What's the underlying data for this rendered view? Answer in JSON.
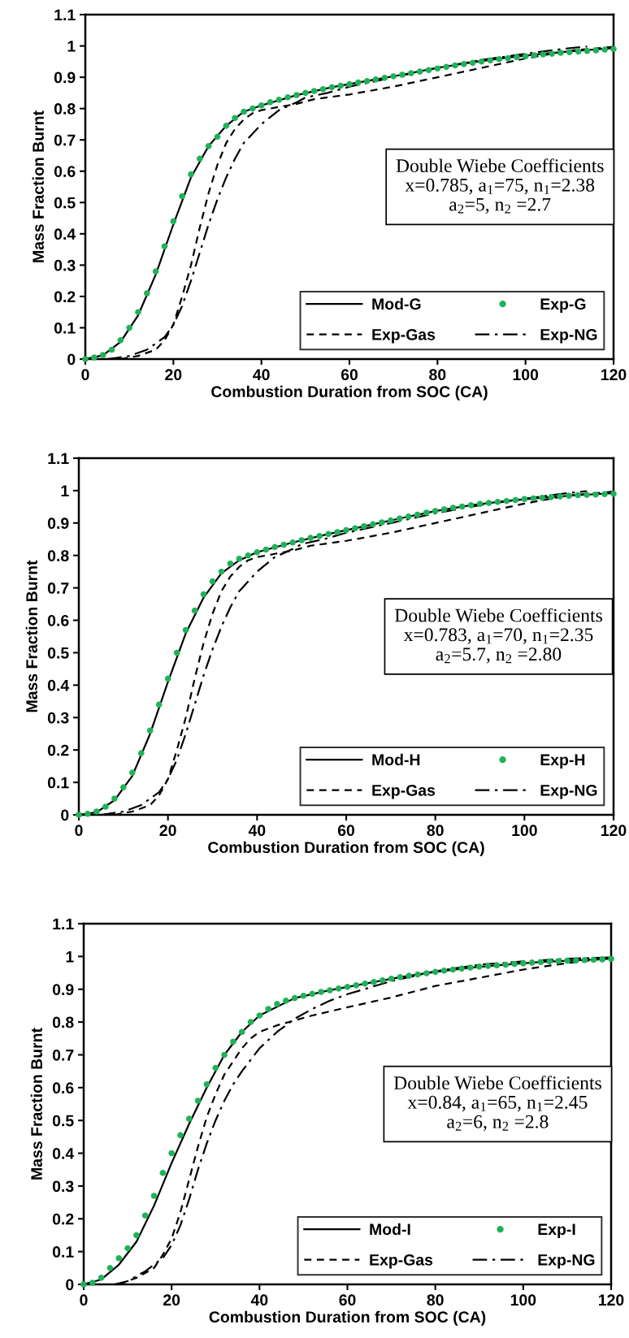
{
  "chart_data": [
    {
      "type": "line",
      "xlabel": "Combustion Duration from SOC (CA)",
      "ylabel": "Mass Fraction Burnt",
      "xlim": [
        0,
        120
      ],
      "ylim": [
        0,
        1.1
      ],
      "xticks": [
        0,
        20,
        40,
        60,
        80,
        100,
        120
      ],
      "yticks": [
        0,
        0.1,
        0.2,
        0.3,
        0.4,
        0.5,
        0.6,
        0.7,
        0.8,
        0.9,
        1,
        1.1
      ],
      "grid": false,
      "legend": "bottom right",
      "annotations": [
        "Double Wiebe Coefficients\nx=0.785, a$_{1}$=75, n$_{1}$=2.38\na$_{2}$=5, n$_{2}$ =2.7"
      ],
      "series": [
        {
          "name": "Mod-G",
          "type": "line",
          "line_style": "solid",
          "color": "#000000",
          "x": [
            0,
            4,
            8,
            12,
            16,
            20,
            24,
            28,
            32,
            36,
            40,
            48,
            56,
            64,
            72,
            80,
            88,
            96,
            104,
            112,
            120
          ],
          "values": [
            0,
            0.012,
            0.055,
            0.14,
            0.27,
            0.43,
            0.58,
            0.68,
            0.745,
            0.79,
            0.81,
            0.843,
            0.868,
            0.888,
            0.908,
            0.93,
            0.948,
            0.963,
            0.975,
            0.985,
            0.993
          ]
        },
        {
          "name": "Exp-G",
          "type": "scatter",
          "marker": "circle",
          "color": "#1fb25a",
          "x": [
            0,
            2,
            4,
            6,
            8,
            10,
            12,
            14,
            16,
            18,
            20,
            22,
            24,
            26,
            28,
            30,
            32,
            34,
            36,
            38,
            40,
            42,
            44,
            46,
            48,
            50,
            52,
            54,
            56,
            58,
            60,
            62,
            64,
            66,
            68,
            70,
            72,
            74,
            76,
            78,
            80,
            82,
            84,
            86,
            88,
            90,
            92,
            94,
            96,
            98,
            100,
            102,
            104,
            106,
            108,
            110,
            112,
            114,
            116,
            118,
            120
          ],
          "values": [
            0,
            0.005,
            0.013,
            0.03,
            0.06,
            0.1,
            0.15,
            0.21,
            0.28,
            0.36,
            0.44,
            0.52,
            0.59,
            0.64,
            0.68,
            0.71,
            0.745,
            0.77,
            0.79,
            0.8,
            0.81,
            0.82,
            0.828,
            0.836,
            0.843,
            0.85,
            0.856,
            0.862,
            0.868,
            0.873,
            0.878,
            0.883,
            0.888,
            0.893,
            0.898,
            0.903,
            0.908,
            0.913,
            0.918,
            0.923,
            0.928,
            0.933,
            0.938,
            0.942,
            0.946,
            0.95,
            0.954,
            0.958,
            0.961,
            0.964,
            0.967,
            0.97,
            0.973,
            0.975,
            0.978,
            0.98,
            0.982,
            0.984,
            0.986,
            0.988,
            0.99
          ]
        },
        {
          "name": "Exp-Gas",
          "type": "line",
          "line_style": "dashed",
          "color": "#000000",
          "x": [
            8,
            12,
            16,
            18,
            20,
            22,
            24,
            26,
            28,
            30,
            32,
            34,
            36,
            38,
            40,
            44,
            48,
            52,
            60,
            70,
            80,
            90,
            100,
            110,
            120
          ],
          "values": [
            0,
            0.01,
            0.03,
            0.06,
            0.11,
            0.2,
            0.3,
            0.42,
            0.53,
            0.62,
            0.69,
            0.735,
            0.765,
            0.785,
            0.795,
            0.805,
            0.815,
            0.83,
            0.845,
            0.87,
            0.9,
            0.93,
            0.96,
            0.985,
            0.997
          ]
        },
        {
          "name": "Exp-NG",
          "type": "line",
          "line_style": "dashdot",
          "color": "#000000",
          "x": [
            5,
            10,
            14,
            18,
            20,
            22,
            24,
            26,
            28,
            30,
            32,
            34,
            36,
            40,
            44,
            48,
            50,
            55,
            60,
            70,
            80,
            90,
            100,
            110,
            114
          ],
          "values": [
            0,
            0.01,
            0.03,
            0.07,
            0.11,
            0.17,
            0.25,
            0.34,
            0.43,
            0.51,
            0.58,
            0.64,
            0.69,
            0.75,
            0.795,
            0.82,
            0.835,
            0.85,
            0.87,
            0.9,
            0.93,
            0.955,
            0.975,
            0.993,
            0.998
          ]
        }
      ]
    },
    {
      "type": "line",
      "xlabel": "Combustion Duration from SOC (CA)",
      "ylabel": "Mass Fraction Burnt",
      "xlim": [
        0,
        120
      ],
      "ylim": [
        0,
        1.1
      ],
      "xticks": [
        0,
        20,
        40,
        60,
        80,
        100,
        120
      ],
      "yticks": [
        0,
        0.1,
        0.2,
        0.3,
        0.4,
        0.5,
        0.6,
        0.7,
        0.8,
        0.9,
        1,
        1.1
      ],
      "grid": false,
      "legend": "bottom right",
      "annotations": [
        "Double Wiebe Coefficients\nx=0.783, a$_{1}$=70, n$_{1}$=2.35\na$_{2}$=5.7, n$_{2}$ =2.80"
      ],
      "series": [
        {
          "name": "Mod-H",
          "type": "line",
          "line_style": "solid",
          "color": "#000000",
          "x": [
            0,
            4,
            8,
            12,
            16,
            20,
            24,
            28,
            32,
            36,
            40,
            48,
            56,
            64,
            72,
            80,
            88,
            96,
            104,
            112,
            120
          ],
          "values": [
            0,
            0.008,
            0.045,
            0.12,
            0.25,
            0.41,
            0.56,
            0.67,
            0.745,
            0.785,
            0.81,
            0.84,
            0.866,
            0.89,
            0.914,
            0.937,
            0.955,
            0.968,
            0.978,
            0.986,
            0.992
          ]
        },
        {
          "name": "Exp-H",
          "type": "scatter",
          "marker": "circle",
          "color": "#1fb25a",
          "x": [
            0,
            2,
            4,
            6,
            8,
            10,
            12,
            14,
            16,
            18,
            20,
            22,
            24,
            26,
            28,
            30,
            32,
            34,
            36,
            38,
            40,
            42,
            44,
            46,
            48,
            50,
            52,
            54,
            56,
            58,
            60,
            62,
            64,
            66,
            68,
            70,
            72,
            74,
            76,
            78,
            80,
            82,
            84,
            86,
            88,
            90,
            92,
            94,
            96,
            98,
            100,
            102,
            104,
            106,
            108,
            110,
            112,
            114,
            116,
            118,
            120
          ],
          "values": [
            0,
            0.003,
            0.01,
            0.025,
            0.05,
            0.085,
            0.13,
            0.19,
            0.26,
            0.34,
            0.42,
            0.5,
            0.57,
            0.63,
            0.68,
            0.72,
            0.75,
            0.775,
            0.79,
            0.8,
            0.81,
            0.818,
            0.826,
            0.833,
            0.84,
            0.847,
            0.854,
            0.86,
            0.866,
            0.872,
            0.878,
            0.884,
            0.89,
            0.896,
            0.902,
            0.908,
            0.914,
            0.92,
            0.926,
            0.932,
            0.937,
            0.942,
            0.947,
            0.951,
            0.955,
            0.959,
            0.962,
            0.965,
            0.968,
            0.971,
            0.974,
            0.976,
            0.978,
            0.98,
            0.982,
            0.984,
            0.986,
            0.987,
            0.988,
            0.989,
            0.99
          ]
        },
        {
          "name": "Exp-Gas",
          "type": "line",
          "line_style": "dashed",
          "color": "#000000",
          "x": [
            8,
            12,
            16,
            18,
            20,
            22,
            24,
            26,
            28,
            30,
            32,
            34,
            36,
            38,
            40,
            44,
            48,
            52,
            60,
            70,
            80,
            90,
            100,
            110,
            120
          ],
          "values": [
            0,
            0.01,
            0.03,
            0.06,
            0.11,
            0.2,
            0.3,
            0.42,
            0.53,
            0.62,
            0.69,
            0.735,
            0.765,
            0.785,
            0.795,
            0.805,
            0.815,
            0.83,
            0.845,
            0.87,
            0.9,
            0.93,
            0.96,
            0.985,
            0.997
          ]
        },
        {
          "name": "Exp-NG",
          "type": "line",
          "line_style": "dashdot",
          "color": "#000000",
          "x": [
            5,
            10,
            14,
            18,
            20,
            22,
            24,
            26,
            28,
            30,
            32,
            34,
            36,
            40,
            44,
            48,
            50,
            55,
            60,
            70,
            80,
            90,
            100,
            110,
            114
          ],
          "values": [
            0,
            0.01,
            0.03,
            0.07,
            0.11,
            0.17,
            0.25,
            0.34,
            0.43,
            0.51,
            0.58,
            0.64,
            0.69,
            0.75,
            0.795,
            0.82,
            0.835,
            0.85,
            0.87,
            0.9,
            0.93,
            0.955,
            0.975,
            0.993,
            0.998
          ]
        }
      ]
    },
    {
      "type": "line",
      "xlabel": "Combustion Duration from SOC (CA)",
      "ylabel": "Mass Fraction Burnt",
      "xlim": [
        0,
        120
      ],
      "ylim": [
        0,
        1.1
      ],
      "xticks": [
        0,
        20,
        40,
        60,
        80,
        100,
        120
      ],
      "yticks": [
        0,
        0.1,
        0.2,
        0.3,
        0.4,
        0.5,
        0.6,
        0.7,
        0.8,
        0.9,
        1,
        1.1
      ],
      "grid": false,
      "legend": "bottom right",
      "annotations": [
        "Double Wiebe Coefficients\nx=0.84, a$_{1}$=65, n$_{1}$=2.45\na$_{2}$=6, n$_{2}$ =2.8"
      ],
      "series": [
        {
          "name": "Mod-I",
          "type": "line",
          "line_style": "solid",
          "color": "#000000",
          "x": [
            0,
            4,
            8,
            12,
            16,
            20,
            24,
            28,
            32,
            36,
            40,
            48,
            56,
            64,
            72,
            80,
            88,
            96,
            104,
            112,
            120
          ],
          "values": [
            0,
            0.015,
            0.06,
            0.13,
            0.24,
            0.37,
            0.49,
            0.6,
            0.7,
            0.77,
            0.82,
            0.873,
            0.897,
            0.917,
            0.937,
            0.953,
            0.966,
            0.975,
            0.983,
            0.988,
            0.993
          ]
        },
        {
          "name": "Exp-I",
          "type": "scatter",
          "marker": "circle",
          "color": "#1fb25a",
          "x": [
            0,
            2,
            4,
            6,
            8,
            10,
            12,
            14,
            16,
            18,
            20,
            22,
            24,
            26,
            28,
            30,
            32,
            34,
            36,
            38,
            40,
            42,
            44,
            46,
            48,
            50,
            52,
            54,
            56,
            58,
            60,
            62,
            64,
            66,
            68,
            70,
            72,
            74,
            76,
            78,
            80,
            82,
            84,
            86,
            88,
            90,
            92,
            94,
            96,
            98,
            100,
            102,
            104,
            106,
            108,
            110,
            112,
            114,
            116,
            118,
            120
          ],
          "values": [
            0,
            0.005,
            0.02,
            0.05,
            0.08,
            0.11,
            0.15,
            0.21,
            0.27,
            0.34,
            0.4,
            0.455,
            0.505,
            0.56,
            0.61,
            0.66,
            0.7,
            0.74,
            0.77,
            0.8,
            0.82,
            0.84,
            0.855,
            0.865,
            0.873,
            0.88,
            0.886,
            0.892,
            0.897,
            0.902,
            0.907,
            0.912,
            0.917,
            0.922,
            0.927,
            0.932,
            0.937,
            0.941,
            0.945,
            0.949,
            0.953,
            0.957,
            0.96,
            0.963,
            0.966,
            0.969,
            0.971,
            0.973,
            0.975,
            0.977,
            0.979,
            0.981,
            0.983,
            0.985,
            0.986,
            0.987,
            0.988,
            0.989,
            0.99,
            0.991,
            0.993
          ]
        },
        {
          "name": "Exp-Gas",
          "type": "line",
          "line_style": "dashed",
          "color": "#000000",
          "x": [
            8,
            12,
            16,
            18,
            20,
            22,
            24,
            26,
            28,
            30,
            32,
            34,
            36,
            38,
            40,
            44,
            48,
            52,
            60,
            70,
            80,
            90,
            100,
            110,
            120
          ],
          "values": [
            0,
            0.02,
            0.05,
            0.09,
            0.14,
            0.22,
            0.32,
            0.42,
            0.51,
            0.58,
            0.64,
            0.68,
            0.72,
            0.75,
            0.77,
            0.79,
            0.805,
            0.82,
            0.845,
            0.875,
            0.91,
            0.935,
            0.96,
            0.98,
            0.995
          ]
        },
        {
          "name": "Exp-NG",
          "type": "line",
          "line_style": "dashdot",
          "color": "#000000",
          "x": [
            7,
            10,
            14,
            18,
            20,
            22,
            24,
            26,
            28,
            30,
            32,
            34,
            36,
            40,
            44,
            48,
            52,
            56,
            60,
            70,
            80,
            90,
            100,
            110,
            120
          ],
          "values": [
            0,
            0.01,
            0.04,
            0.08,
            0.12,
            0.18,
            0.26,
            0.35,
            0.43,
            0.5,
            0.56,
            0.61,
            0.65,
            0.72,
            0.77,
            0.81,
            0.84,
            0.865,
            0.885,
            0.925,
            0.955,
            0.975,
            0.985,
            0.993,
            0.997
          ]
        }
      ]
    }
  ]
}
